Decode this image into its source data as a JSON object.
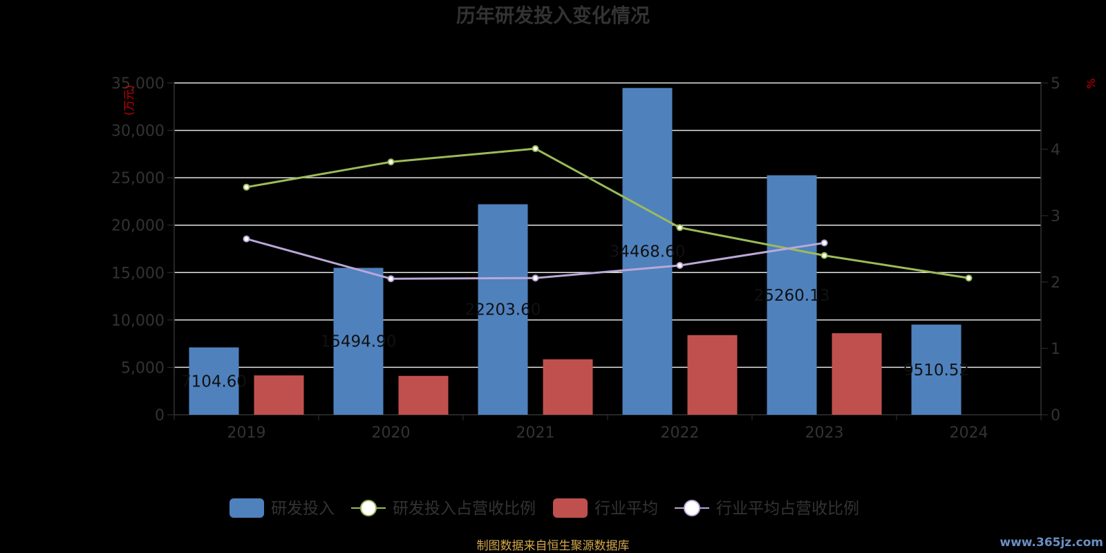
{
  "chart_data": {
    "type": "bar",
    "title": "历年研发投入变化情况",
    "categories": [
      "2019",
      "2020",
      "2021",
      "2022",
      "2023",
      "2024"
    ],
    "y_left": {
      "label": "(万元)",
      "min": 0,
      "max": 35000,
      "ticks": [
        "0",
        "5,000",
        "10,000",
        "15,000",
        "20,000",
        "25,000",
        "30,000",
        "35,000"
      ],
      "tick_values": [
        0,
        5000,
        10000,
        15000,
        20000,
        25000,
        30000,
        35000
      ]
    },
    "y_right": {
      "label": "%",
      "min": 0,
      "max": 5,
      "ticks": [
        "0",
        "1",
        "2",
        "3",
        "4",
        "5"
      ],
      "tick_values": [
        0,
        1,
        2,
        3,
        4,
        5
      ]
    },
    "grid": true,
    "legend_position": "bottom",
    "series": [
      {
        "name": "研发投入",
        "kind": "bar",
        "axis": "left",
        "color": "#4f81bd",
        "values": [
          7104.6,
          15494.9,
          22203.6,
          34468.6,
          25260.13,
          9510.52
        ],
        "labels": [
          "7104.60",
          "15494.90",
          "22203.60",
          "34468.60",
          "25260.13",
          "9510.52"
        ]
      },
      {
        "name": "研发投入占营收比例",
        "kind": "line",
        "axis": "right",
        "color": "#9bbb59",
        "values": [
          3.43,
          3.81,
          4.01,
          2.82,
          2.4,
          2.06
        ]
      },
      {
        "name": "行业平均",
        "kind": "bar",
        "axis": "left",
        "color": "#c0504d",
        "values": [
          4150,
          4100,
          5850,
          8400,
          8600,
          null
        ]
      },
      {
        "name": "行业平均占营收比例",
        "kind": "line",
        "axis": "right",
        "color": "#b9a8d6",
        "values": [
          2.65,
          2.05,
          2.06,
          2.25,
          2.59,
          null
        ]
      }
    ]
  },
  "footer": {
    "source": "制图数据来自恒生聚源数据库"
  },
  "watermark": "www.365jz.com"
}
